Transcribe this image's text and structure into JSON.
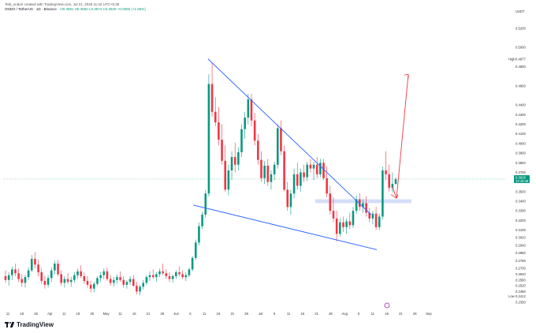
{
  "header": {
    "line1": "Tetit_ondo// created with TradingView.com, Jul 21, 2026 11:42 UTC+5:30",
    "symbol": "ONDO / TetherUS · 1D · Binance",
    "ohlc": "O0.3581 H0.3650 L0.3574 C0.3629 +0.0056 (+1.56%)"
  },
  "currency_label": "USDT",
  "high_label": "High",
  "high_value": "0.4877",
  "low_label": "Low",
  "low_value": "0.2412",
  "price_tag": {
    "price": "0.3629",
    "timer": "12:18:48",
    "color": "#089981"
  },
  "footer": {
    "brand": "TradingView"
  },
  "colors": {
    "up": "#089981",
    "down": "#f23645",
    "trendline": "#2962ff",
    "projection": "#f23645",
    "zone": "#c9d6f5"
  },
  "chart_data": {
    "type": "candlestick",
    "ylim": [
      0.2291,
      0.5379
    ],
    "y_ticks": [
      "0.5200",
      "0.5000",
      "0.4800",
      "0.4600",
      "0.4400",
      "0.4300",
      "0.4200",
      "0.4100",
      "0.4000",
      "0.3900",
      "0.3800",
      "0.3700",
      "0.3600",
      "0.3500",
      "0.3400",
      "0.3300",
      "0.3200",
      "0.3100",
      "0.3020",
      "0.2940",
      "0.2860",
      "0.2780",
      "0.2700",
      "0.2640",
      "0.2580",
      "0.2520",
      "0.2460",
      "0.2350"
    ],
    "x_ticks": [
      "11",
      "18",
      "25",
      "Apr",
      "11",
      "18",
      "25",
      "May",
      "11",
      "16",
      "21",
      "26",
      "Jun",
      "6",
      "11",
      "16",
      "21",
      "26",
      "Jul",
      "6",
      "11",
      "16",
      "21",
      "26",
      "Aug",
      "6",
      "11",
      "16",
      "21",
      "26",
      "Sep"
    ],
    "candles": [
      [
        0.262,
        0.268,
        0.255,
        0.258
      ],
      [
        0.258,
        0.266,
        0.252,
        0.263
      ],
      [
        0.263,
        0.272,
        0.258,
        0.269
      ],
      [
        0.269,
        0.275,
        0.262,
        0.265
      ],
      [
        0.265,
        0.27,
        0.256,
        0.259
      ],
      [
        0.259,
        0.264,
        0.251,
        0.255
      ],
      [
        0.255,
        0.263,
        0.25,
        0.261
      ],
      [
        0.261,
        0.271,
        0.258,
        0.268
      ],
      [
        0.268,
        0.284,
        0.266,
        0.28
      ],
      [
        0.28,
        0.287,
        0.27,
        0.274
      ],
      [
        0.274,
        0.279,
        0.262,
        0.266
      ],
      [
        0.266,
        0.27,
        0.254,
        0.257
      ],
      [
        0.257,
        0.262,
        0.249,
        0.253
      ],
      [
        0.253,
        0.263,
        0.25,
        0.26
      ],
      [
        0.26,
        0.271,
        0.256,
        0.268
      ],
      [
        0.268,
        0.278,
        0.264,
        0.275
      ],
      [
        0.275,
        0.279,
        0.262,
        0.264
      ],
      [
        0.264,
        0.268,
        0.252,
        0.255
      ],
      [
        0.255,
        0.262,
        0.25,
        0.259
      ],
      [
        0.259,
        0.265,
        0.254,
        0.256
      ],
      [
        0.256,
        0.261,
        0.251,
        0.258
      ],
      [
        0.258,
        0.266,
        0.255,
        0.263
      ],
      [
        0.263,
        0.27,
        0.259,
        0.267
      ],
      [
        0.267,
        0.273,
        0.26,
        0.262
      ],
      [
        0.262,
        0.266,
        0.254,
        0.257
      ],
      [
        0.257,
        0.262,
        0.25,
        0.253
      ],
      [
        0.253,
        0.257,
        0.245,
        0.249
      ],
      [
        0.249,
        0.256,
        0.245,
        0.254
      ],
      [
        0.254,
        0.262,
        0.252,
        0.26
      ],
      [
        0.26,
        0.266,
        0.256,
        0.263
      ],
      [
        0.263,
        0.27,
        0.259,
        0.267
      ],
      [
        0.267,
        0.271,
        0.257,
        0.259
      ],
      [
        0.259,
        0.263,
        0.252,
        0.255
      ],
      [
        0.255,
        0.261,
        0.251,
        0.258
      ],
      [
        0.258,
        0.264,
        0.254,
        0.261
      ],
      [
        0.261,
        0.267,
        0.256,
        0.258
      ],
      [
        0.258,
        0.262,
        0.25,
        0.253
      ],
      [
        0.253,
        0.258,
        0.249,
        0.256
      ],
      [
        0.256,
        0.262,
        0.253,
        0.259
      ],
      [
        0.259,
        0.263,
        0.251,
        0.252
      ],
      [
        0.252,
        0.256,
        0.243,
        0.246
      ],
      [
        0.246,
        0.253,
        0.242,
        0.251
      ],
      [
        0.251,
        0.258,
        0.248,
        0.255
      ],
      [
        0.255,
        0.263,
        0.253,
        0.261
      ],
      [
        0.261,
        0.267,
        0.257,
        0.263
      ],
      [
        0.263,
        0.269,
        0.259,
        0.261
      ],
      [
        0.261,
        0.266,
        0.256,
        0.264
      ],
      [
        0.264,
        0.27,
        0.261,
        0.267
      ],
      [
        0.267,
        0.275,
        0.263,
        0.265
      ],
      [
        0.265,
        0.269,
        0.259,
        0.262
      ],
      [
        0.262,
        0.266,
        0.256,
        0.259
      ],
      [
        0.259,
        0.264,
        0.255,
        0.262
      ],
      [
        0.262,
        0.268,
        0.259,
        0.266
      ],
      [
        0.266,
        0.272,
        0.262,
        0.264
      ],
      [
        0.264,
        0.268,
        0.259,
        0.261
      ],
      [
        0.261,
        0.266,
        0.257,
        0.263
      ],
      [
        0.263,
        0.271,
        0.261,
        0.269
      ],
      [
        0.269,
        0.283,
        0.267,
        0.281
      ],
      [
        0.281,
        0.3,
        0.279,
        0.297
      ],
      [
        0.297,
        0.318,
        0.294,
        0.314
      ],
      [
        0.314,
        0.329,
        0.311,
        0.326
      ],
      [
        0.326,
        0.352,
        0.323,
        0.348
      ],
      [
        0.348,
        0.472,
        0.345,
        0.462
      ],
      [
        0.462,
        0.484,
        0.428,
        0.433
      ],
      [
        0.433,
        0.448,
        0.418,
        0.422
      ],
      [
        0.422,
        0.438,
        0.398,
        0.404
      ],
      [
        0.404,
        0.42,
        0.378,
        0.382
      ],
      [
        0.382,
        0.398,
        0.35,
        0.352
      ],
      [
        0.352,
        0.378,
        0.346,
        0.372
      ],
      [
        0.372,
        0.392,
        0.362,
        0.386
      ],
      [
        0.386,
        0.401,
        0.37,
        0.378
      ],
      [
        0.378,
        0.396,
        0.372,
        0.391
      ],
      [
        0.391,
        0.42,
        0.386,
        0.415
      ],
      [
        0.415,
        0.433,
        0.405,
        0.427
      ],
      [
        0.427,
        0.452,
        0.42,
        0.446
      ],
      [
        0.446,
        0.452,
        0.418,
        0.424
      ],
      [
        0.424,
        0.432,
        0.398,
        0.403
      ],
      [
        0.403,
        0.41,
        0.378,
        0.383
      ],
      [
        0.383,
        0.392,
        0.36,
        0.364
      ],
      [
        0.364,
        0.382,
        0.358,
        0.377
      ],
      [
        0.377,
        0.384,
        0.356,
        0.36
      ],
      [
        0.36,
        0.372,
        0.352,
        0.368
      ],
      [
        0.368,
        0.381,
        0.362,
        0.378
      ],
      [
        0.378,
        0.42,
        0.374,
        0.416
      ],
      [
        0.416,
        0.424,
        0.388,
        0.392
      ],
      [
        0.392,
        0.398,
        0.35,
        0.352
      ],
      [
        0.352,
        0.36,
        0.33,
        0.334
      ],
      [
        0.334,
        0.352,
        0.326,
        0.348
      ],
      [
        0.348,
        0.374,
        0.343,
        0.368
      ],
      [
        0.368,
        0.38,
        0.352,
        0.356
      ],
      [
        0.356,
        0.374,
        0.35,
        0.37
      ],
      [
        0.37,
        0.378,
        0.36,
        0.365
      ],
      [
        0.365,
        0.381,
        0.361,
        0.378
      ],
      [
        0.378,
        0.384,
        0.37,
        0.374
      ],
      [
        0.374,
        0.381,
        0.362,
        0.378
      ],
      [
        0.378,
        0.386,
        0.364,
        0.368
      ],
      [
        0.368,
        0.384,
        0.365,
        0.38
      ],
      [
        0.38,
        0.384,
        0.362,
        0.364
      ],
      [
        0.364,
        0.376,
        0.344,
        0.348
      ],
      [
        0.348,
        0.356,
        0.326,
        0.33
      ],
      [
        0.33,
        0.344,
        0.318,
        0.322
      ],
      [
        0.322,
        0.33,
        0.298,
        0.306
      ],
      [
        0.306,
        0.322,
        0.303,
        0.318
      ],
      [
        0.318,
        0.324,
        0.308,
        0.313
      ],
      [
        0.313,
        0.322,
        0.306,
        0.319
      ],
      [
        0.319,
        0.328,
        0.311,
        0.315
      ],
      [
        0.315,
        0.334,
        0.312,
        0.33
      ],
      [
        0.33,
        0.346,
        0.327,
        0.342
      ],
      [
        0.342,
        0.348,
        0.33,
        0.334
      ],
      [
        0.334,
        0.342,
        0.328,
        0.338
      ],
      [
        0.338,
        0.345,
        0.324,
        0.328
      ],
      [
        0.328,
        0.333,
        0.318,
        0.322
      ],
      [
        0.322,
        0.33,
        0.316,
        0.327
      ],
      [
        0.327,
        0.334,
        0.31,
        0.313
      ],
      [
        0.313,
        0.327,
        0.31,
        0.324
      ],
      [
        0.324,
        0.376,
        0.321,
        0.372
      ],
      [
        0.372,
        0.392,
        0.362,
        0.368
      ],
      [
        0.368,
        0.378,
        0.35,
        0.354
      ],
      [
        0.354,
        0.37,
        0.349,
        0.358
      ],
      [
        0.358,
        0.365,
        0.357,
        0.363
      ]
    ],
    "annotations": {
      "resistance_line": [
        [
          0.488,
          0.326
        ]
      ],
      "support_line": [
        [
          0.336,
          0.2895
        ]
      ],
      "retest_zone": [
        0.342,
        0.338
      ],
      "projection_target": 0.472
    }
  }
}
